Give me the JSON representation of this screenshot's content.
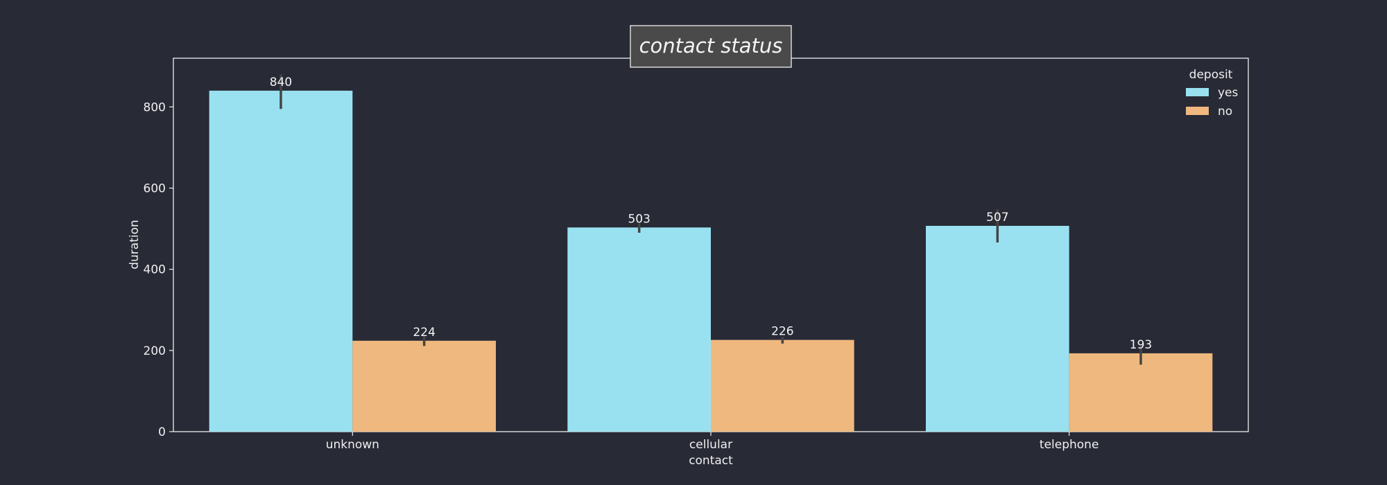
{
  "chart_data": {
    "type": "bar",
    "title": "contact status",
    "xlabel": "contact",
    "ylabel": "duration",
    "categories": [
      "unknown",
      "cellular",
      "telephone"
    ],
    "series": [
      {
        "name": "yes",
        "values": [
          840,
          503,
          507
        ],
        "error": [
          [
            795,
            880
          ],
          [
            490,
            512
          ],
          [
            466,
            548
          ]
        ],
        "color": "#99e1f0"
      },
      {
        "name": "no",
        "values": [
          224,
          226,
          193
        ],
        "error": [
          [
            211,
            236
          ],
          [
            217,
            233
          ],
          [
            165,
            210
          ]
        ],
        "color": "#efb87e"
      }
    ],
    "data_labels": [
      [
        "840",
        "503",
        "507"
      ],
      [
        "224",
        "226",
        "193"
      ]
    ],
    "ylim": [
      0,
      920
    ],
    "yticks": [
      0,
      200,
      400,
      600,
      800
    ],
    "ytick_labels": [
      "0",
      "200",
      "400",
      "600",
      "800"
    ],
    "legend": {
      "title": "deposit",
      "placement": "top-right"
    },
    "grid": false,
    "colors": {
      "background": "#282a36",
      "frame": "#ffffff",
      "error_bar": "#444444",
      "title_box": "#4a4a4a"
    }
  }
}
